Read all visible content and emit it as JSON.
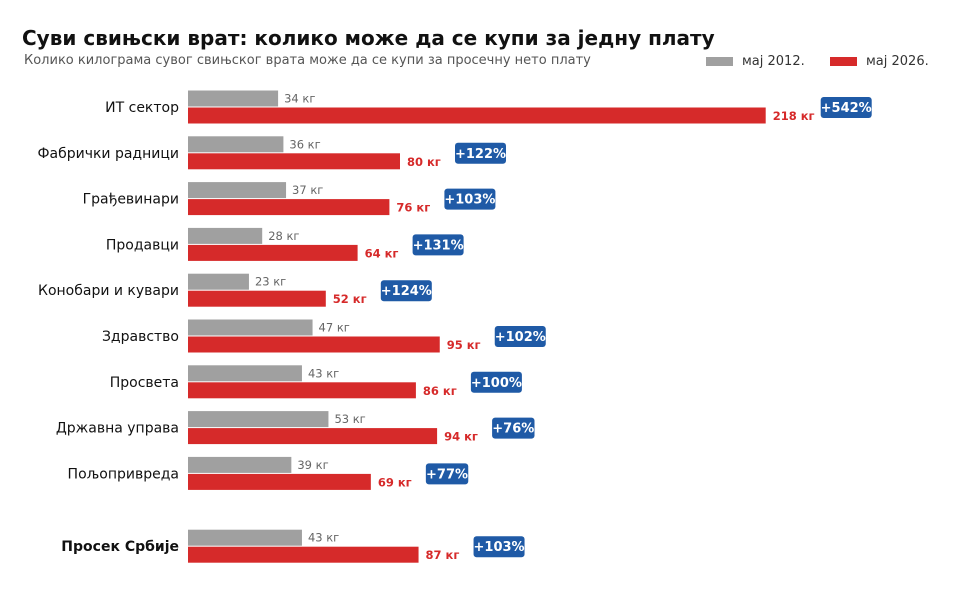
{
  "chart_data": {
    "type": "bar",
    "orientation": "horizontal",
    "title": "Суви свињски врат: колико може да се купи за једну плату",
    "subtitle": "Колико килограма сувог свињског врата може да се купи за просечну нето плату",
    "categories": [
      "ИТ сектор",
      "Фабрички радници",
      "Грађевинари",
      "Продавци",
      "Конобари и кувари",
      "Здравство",
      "Просвета",
      "Државна управа",
      "Пољопривреда",
      "Просек Србије"
    ],
    "series": [
      {
        "name": "мај 2012.",
        "color": "#a0a0a0",
        "values": [
          34,
          36,
          37,
          28,
          23,
          47,
          43,
          53,
          39,
          43
        ],
        "labels": [
          "34 кг",
          "36 кг",
          "37 кг",
          "28 кг",
          "23 кг",
          "47 кг",
          "43 кг",
          "53 кг",
          "39 кг",
          "43 кг"
        ]
      },
      {
        "name": "мај 2026.",
        "color": "#d62a2a",
        "values": [
          218,
          80,
          76,
          64,
          52,
          95,
          86,
          94,
          69,
          87
        ],
        "labels": [
          "218 кг",
          "80 кг",
          "76 кг",
          "64 кг",
          "52 кг",
          "95 кг",
          "86 кг",
          "94 кг",
          "69 кг",
          "87 кг"
        ]
      }
    ],
    "changes": [
      "+542%",
      "+122%",
      "+103%",
      "+131%",
      "+124%",
      "+102%",
      "+100%",
      "+76%",
      "+77%",
      "+103%"
    ],
    "highlighted_category": "Просек Србије",
    "badge_color": "#1f5aa6",
    "legend_position": "top-right",
    "grid": false
  }
}
